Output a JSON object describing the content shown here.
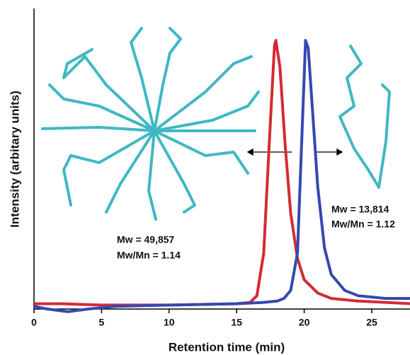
{
  "chart_data": {
    "type": "line",
    "x_label": "Retention time (min)",
    "y_label": "Intensity (arbitary units)",
    "xlim": [
      0,
      28
    ],
    "xticks": [
      0,
      5,
      10,
      15,
      20,
      25
    ],
    "ylim": [
      -0.01,
      1.12
    ],
    "series": [
      {
        "name": null,
        "color": "#d42a35",
        "x": [
          0,
          2,
          5,
          10,
          15,
          16,
          16.5,
          17,
          17.4,
          17.8,
          17.9,
          18.2,
          18.6,
          19,
          19.5,
          20,
          21,
          22,
          24,
          28
        ],
        "values": [
          0.01,
          0.01,
          0.005,
          0.005,
          0.01,
          0.015,
          0.04,
          0.2,
          0.6,
          0.98,
          1.0,
          0.9,
          0.6,
          0.35,
          0.18,
          0.1,
          0.05,
          0.03,
          0.02,
          0.01
        ]
      },
      {
        "name": null,
        "color": "#3548b0",
        "x": [
          0,
          1,
          2.5,
          4,
          6,
          10,
          15,
          17,
          18,
          18.5,
          19,
          19.5,
          19.8,
          20.1,
          20.3,
          20.6,
          21,
          21.5,
          22,
          23,
          24,
          26,
          28
        ],
        "values": [
          0.0,
          -0.01,
          -0.02,
          -0.01,
          0.0,
          0.005,
          0.01,
          0.015,
          0.02,
          0.03,
          0.06,
          0.2,
          0.6,
          1.0,
          0.97,
          0.75,
          0.45,
          0.22,
          0.12,
          0.06,
          0.04,
          0.03,
          0.03
        ]
      }
    ],
    "annotations": [
      "Mw = 49,857",
      "Mw/Mn = 1.14",
      "Mw = 13,814",
      "Mw/Mn = 1.12"
    ]
  }
}
